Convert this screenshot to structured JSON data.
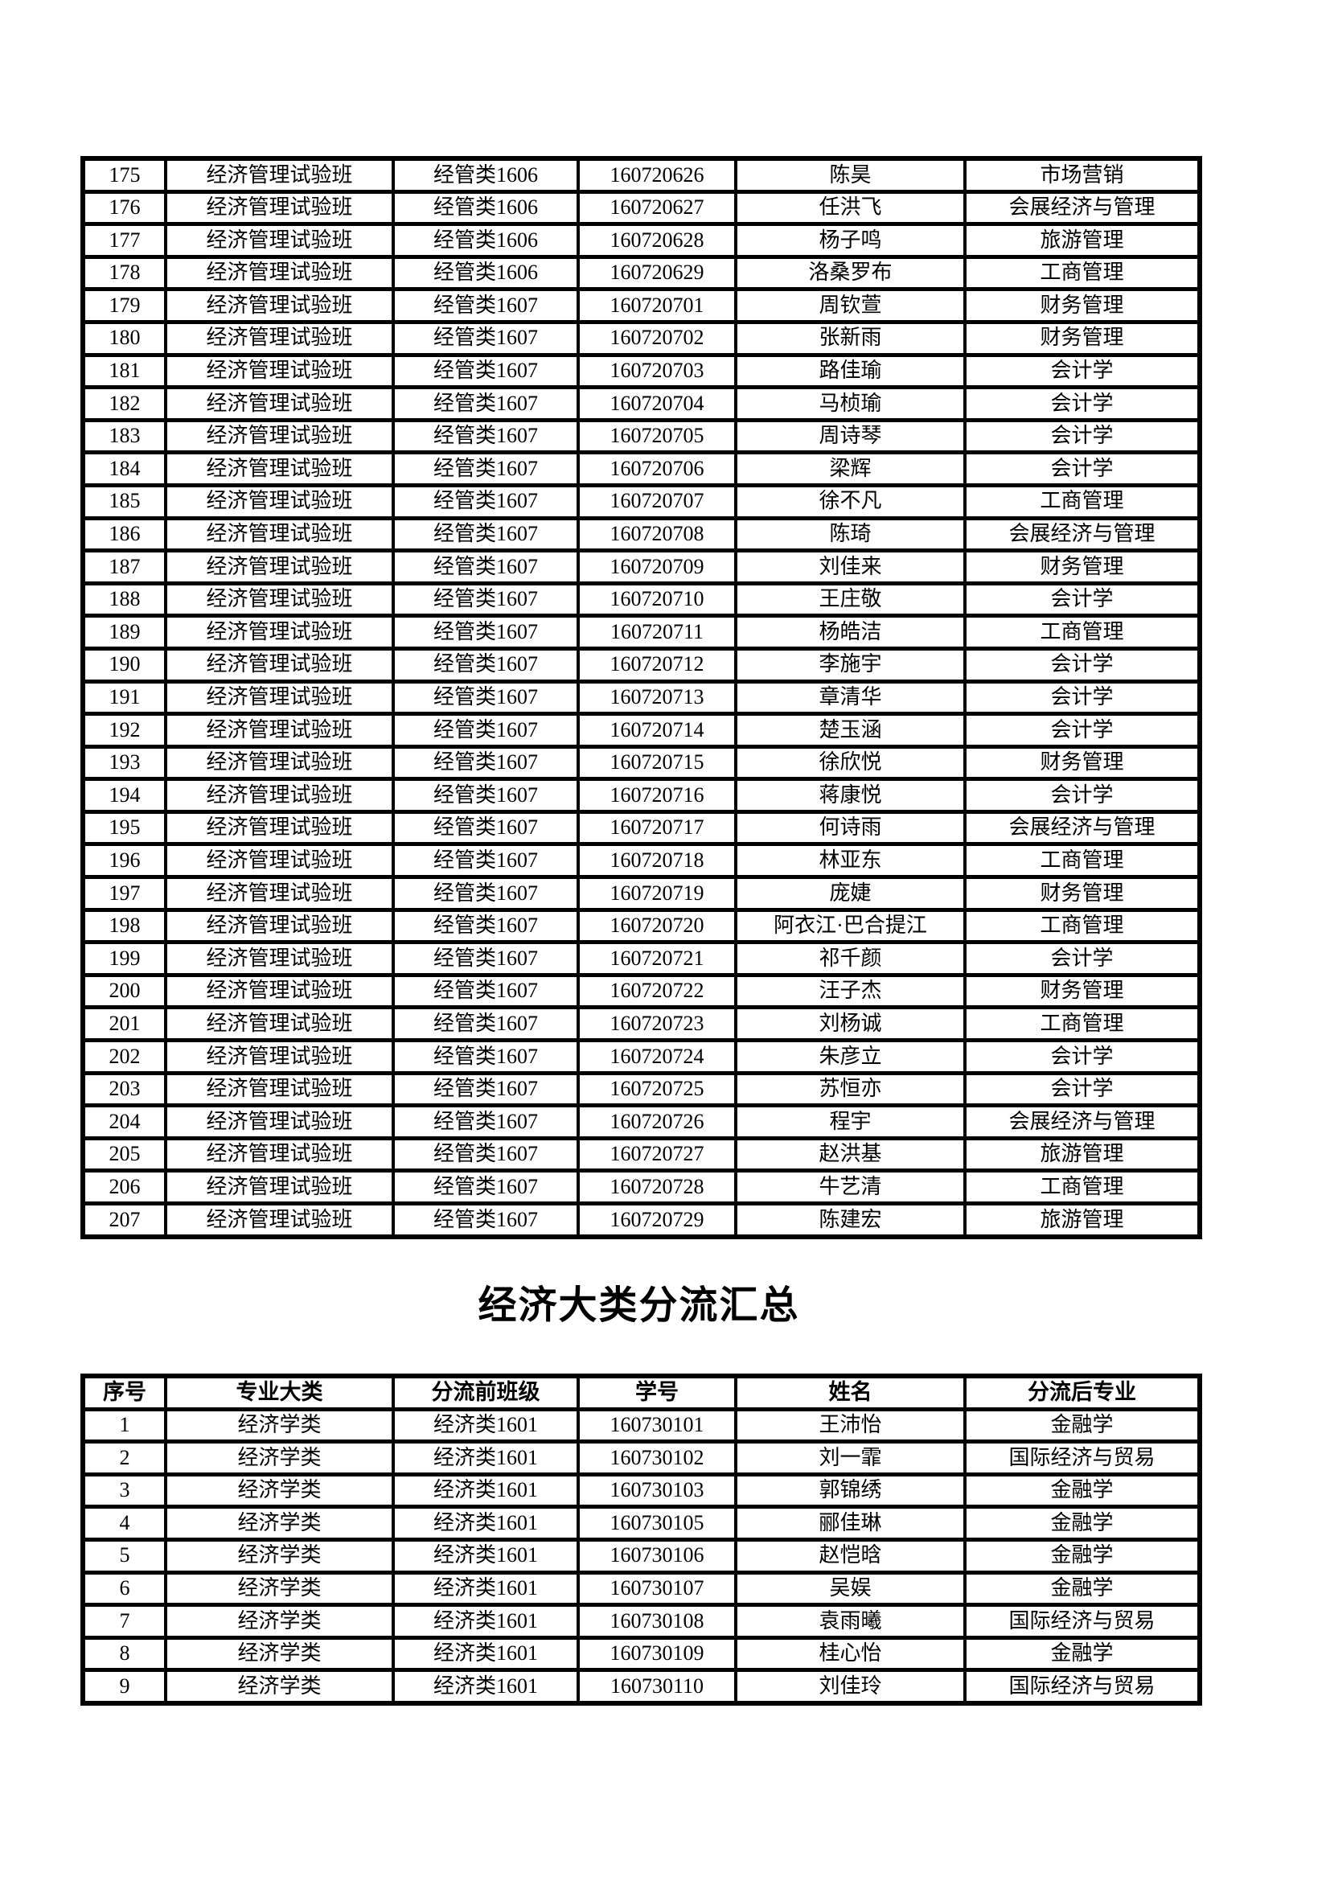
{
  "colors": {
    "background": "#ffffff",
    "border": "#000000",
    "text": "#000000"
  },
  "title": "经济大类分流汇总",
  "table1": {
    "rows": [
      [
        "175",
        "经济管理试验班",
        "经管类1606",
        "160720626",
        "陈昊",
        "市场营销"
      ],
      [
        "176",
        "经济管理试验班",
        "经管类1606",
        "160720627",
        "任洪飞",
        "会展经济与管理"
      ],
      [
        "177",
        "经济管理试验班",
        "经管类1606",
        "160720628",
        "杨子鸣",
        "旅游管理"
      ],
      [
        "178",
        "经济管理试验班",
        "经管类1606",
        "160720629",
        "洛桑罗布",
        "工商管理"
      ],
      [
        "179",
        "经济管理试验班",
        "经管类1607",
        "160720701",
        "周钦萱",
        "财务管理"
      ],
      [
        "180",
        "经济管理试验班",
        "经管类1607",
        "160720702",
        "张新雨",
        "财务管理"
      ],
      [
        "181",
        "经济管理试验班",
        "经管类1607",
        "160720703",
        "路佳瑜",
        "会计学"
      ],
      [
        "182",
        "经济管理试验班",
        "经管类1607",
        "160720704",
        "马桢瑜",
        "会计学"
      ],
      [
        "183",
        "经济管理试验班",
        "经管类1607",
        "160720705",
        "周诗琴",
        "会计学"
      ],
      [
        "184",
        "经济管理试验班",
        "经管类1607",
        "160720706",
        "梁辉",
        "会计学"
      ],
      [
        "185",
        "经济管理试验班",
        "经管类1607",
        "160720707",
        "徐不凡",
        "工商管理"
      ],
      [
        "186",
        "经济管理试验班",
        "经管类1607",
        "160720708",
        "陈琦",
        "会展经济与管理"
      ],
      [
        "187",
        "经济管理试验班",
        "经管类1607",
        "160720709",
        "刘佳来",
        "财务管理"
      ],
      [
        "188",
        "经济管理试验班",
        "经管类1607",
        "160720710",
        "王庄敬",
        "会计学"
      ],
      [
        "189",
        "经济管理试验班",
        "经管类1607",
        "160720711",
        "杨皓洁",
        "工商管理"
      ],
      [
        "190",
        "经济管理试验班",
        "经管类1607",
        "160720712",
        "李施宇",
        "会计学"
      ],
      [
        "191",
        "经济管理试验班",
        "经管类1607",
        "160720713",
        "章清华",
        "会计学"
      ],
      [
        "192",
        "经济管理试验班",
        "经管类1607",
        "160720714",
        "楚玉涵",
        "会计学"
      ],
      [
        "193",
        "经济管理试验班",
        "经管类1607",
        "160720715",
        "徐欣悦",
        "财务管理"
      ],
      [
        "194",
        "经济管理试验班",
        "经管类1607",
        "160720716",
        "蒋康悦",
        "会计学"
      ],
      [
        "195",
        "经济管理试验班",
        "经管类1607",
        "160720717",
        "何诗雨",
        "会展经济与管理"
      ],
      [
        "196",
        "经济管理试验班",
        "经管类1607",
        "160720718",
        "林亚东",
        "工商管理"
      ],
      [
        "197",
        "经济管理试验班",
        "经管类1607",
        "160720719",
        "庞婕",
        "财务管理"
      ],
      [
        "198",
        "经济管理试验班",
        "经管类1607",
        "160720720",
        "阿衣江·巴合提江",
        "工商管理"
      ],
      [
        "199",
        "经济管理试验班",
        "经管类1607",
        "160720721",
        "祁千颜",
        "会计学"
      ],
      [
        "200",
        "经济管理试验班",
        "经管类1607",
        "160720722",
        "汪子杰",
        "财务管理"
      ],
      [
        "201",
        "经济管理试验班",
        "经管类1607",
        "160720723",
        "刘杨诚",
        "工商管理"
      ],
      [
        "202",
        "经济管理试验班",
        "经管类1607",
        "160720724",
        "朱彦立",
        "会计学"
      ],
      [
        "203",
        "经济管理试验班",
        "经管类1607",
        "160720725",
        "苏恒亦",
        "会计学"
      ],
      [
        "204",
        "经济管理试验班",
        "经管类1607",
        "160720726",
        "程宇",
        "会展经济与管理"
      ],
      [
        "205",
        "经济管理试验班",
        "经管类1607",
        "160720727",
        "赵洪基",
        "旅游管理"
      ],
      [
        "206",
        "经济管理试验班",
        "经管类1607",
        "160720728",
        "牛艺清",
        "工商管理"
      ],
      [
        "207",
        "经济管理试验班",
        "经管类1607",
        "160720729",
        "陈建宏",
        "旅游管理"
      ]
    ]
  },
  "table2": {
    "header_rows": [
      [
        "序号",
        "专业大类",
        "分流前班级",
        "学号",
        "姓名",
        "分流后专业"
      ]
    ],
    "rows": [
      [
        "1",
        "经济学类",
        "经济类1601",
        "160730101",
        "王沛怡",
        "金融学"
      ],
      [
        "2",
        "经济学类",
        "经济类1601",
        "160730102",
        "刘一霏",
        "国际经济与贸易"
      ],
      [
        "3",
        "经济学类",
        "经济类1601",
        "160730103",
        "郭锦绣",
        "金融学"
      ],
      [
        "4",
        "经济学类",
        "经济类1601",
        "160730105",
        "郦佳琳",
        "金融学"
      ],
      [
        "5",
        "经济学类",
        "经济类1601",
        "160730106",
        "赵恺晗",
        "金融学"
      ],
      [
        "6",
        "经济学类",
        "经济类1601",
        "160730107",
        "吴娱",
        "金融学"
      ],
      [
        "7",
        "经济学类",
        "经济类1601",
        "160730108",
        "袁雨曦",
        "国际经济与贸易"
      ],
      [
        "8",
        "经济学类",
        "经济类1601",
        "160730109",
        "桂心怡",
        "金融学"
      ],
      [
        "9",
        "经济学类",
        "经济类1601",
        "160730110",
        "刘佳玲",
        "国际经济与贸易"
      ]
    ]
  }
}
